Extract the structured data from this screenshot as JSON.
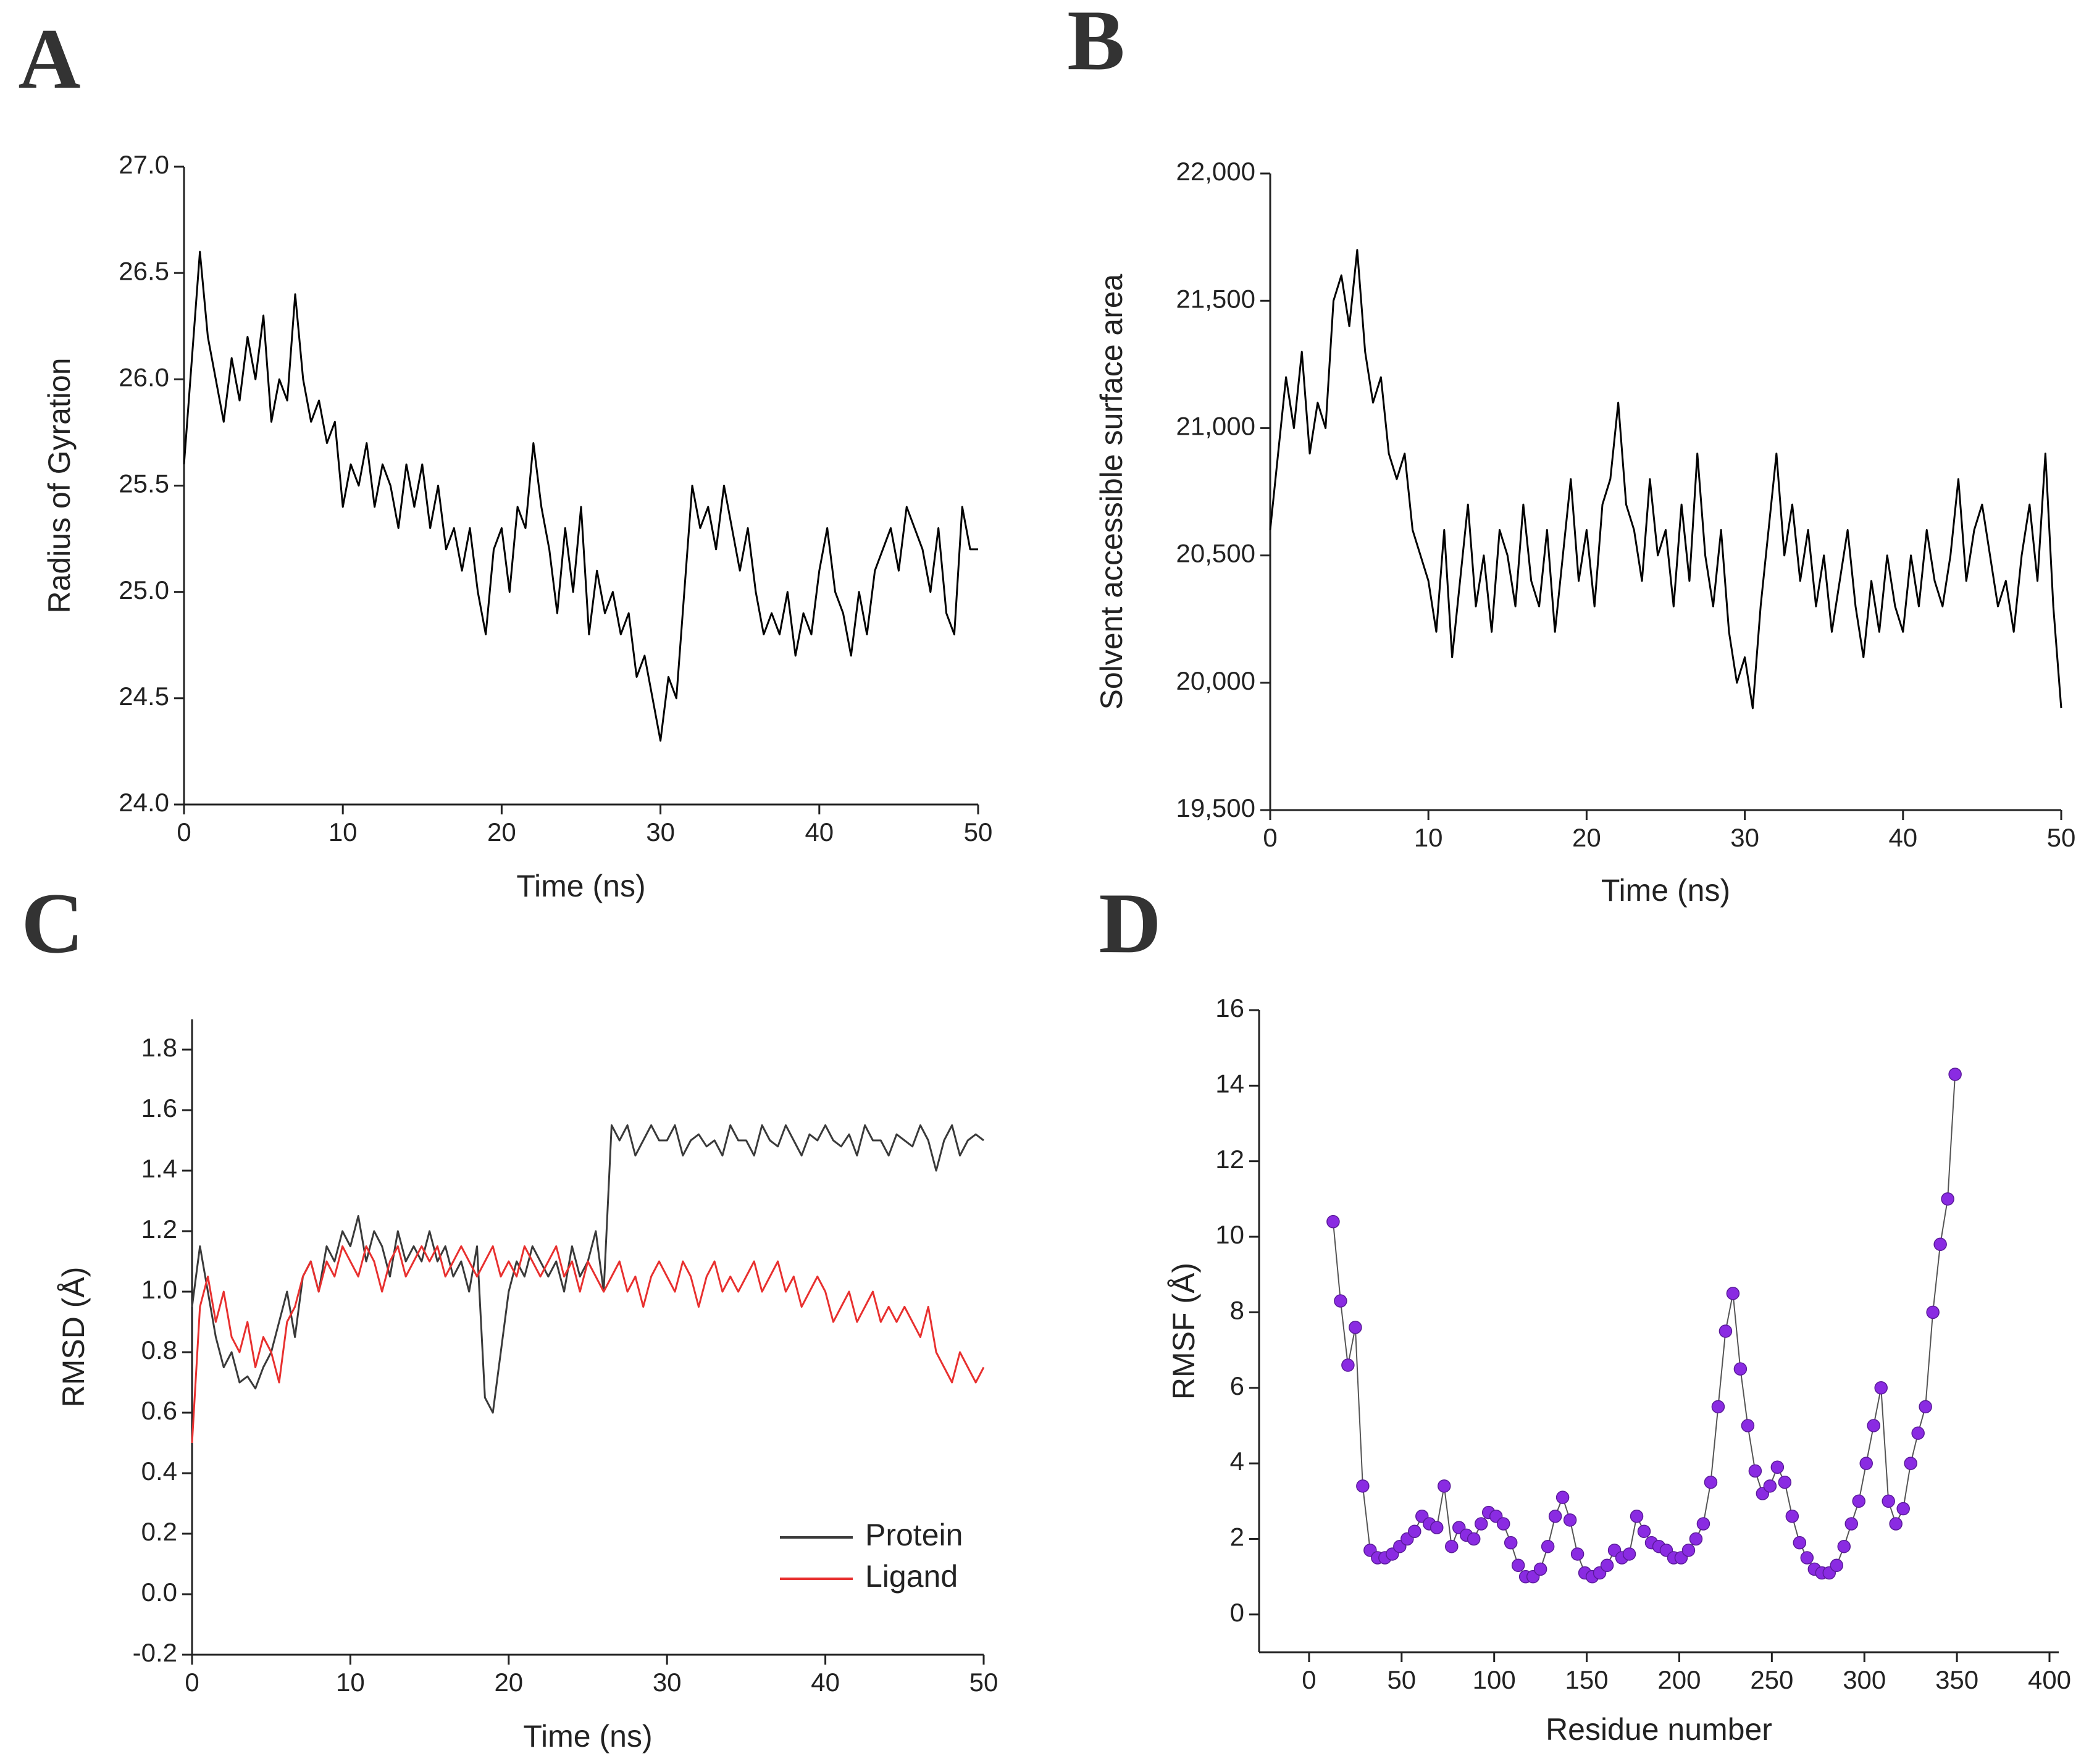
{
  "chart_data": [
    {
      "type": "line",
      "label": "A",
      "xlabel": "Time (ns)",
      "ylabel": "Radius of Gyration",
      "xlim": [
        0,
        50
      ],
      "xticks": [
        0,
        10,
        20,
        30,
        40,
        50
      ],
      "ylim": [
        24,
        27
      ],
      "yticks": [
        {
          "value": 24,
          "label": "24.0"
        },
        24.5,
        {
          "value": 25,
          "label": "25.0"
        },
        25.5,
        {
          "value": 26,
          "label": "26.0"
        },
        26.5,
        {
          "value": 27,
          "label": "27.0"
        }
      ],
      "x": [
        0,
        0.5,
        1,
        1.5,
        2,
        2.5,
        3,
        3.5,
        4,
        4.5,
        5,
        5.5,
        6,
        6.5,
        7,
        7.5,
        8,
        8.5,
        9,
        9.5,
        10,
        10.5,
        11,
        11.5,
        12,
        12.5,
        13,
        13.5,
        14,
        14.5,
        15,
        15.5,
        16,
        16.5,
        17,
        17.5,
        18,
        18.5,
        19,
        19.5,
        20,
        20.5,
        21,
        21.5,
        22,
        22.5,
        23,
        23.5,
        24,
        24.5,
        25,
        25.5,
        26,
        26.5,
        27,
        27.5,
        28,
        28.5,
        29,
        29.5,
        30,
        30.5,
        31,
        31.5,
        32,
        32.5,
        33,
        33.5,
        34,
        34.5,
        35,
        35.5,
        36,
        36.5,
        37,
        37.5,
        38,
        38.5,
        39,
        39.5,
        40,
        40.5,
        41,
        41.5,
        42,
        42.5,
        43,
        43.5,
        44,
        44.5,
        45,
        45.5,
        46,
        46.5,
        47,
        47.5,
        48,
        48.5,
        49,
        49.5,
        50
      ],
      "series": [
        {
          "color": "#000000",
          "values": [
            25.6,
            26.1,
            26.6,
            26.2,
            26.0,
            25.8,
            26.1,
            25.9,
            26.2,
            26.0,
            26.3,
            25.8,
            26.0,
            25.9,
            26.4,
            26.0,
            25.8,
            25.9,
            25.7,
            25.8,
            25.4,
            25.6,
            25.5,
            25.7,
            25.4,
            25.6,
            25.5,
            25.3,
            25.6,
            25.4,
            25.6,
            25.3,
            25.5,
            25.2,
            25.3,
            25.1,
            25.3,
            25.0,
            24.8,
            25.2,
            25.3,
            25.0,
            25.4,
            25.3,
            25.7,
            25.4,
            25.2,
            24.9,
            25.3,
            25.0,
            25.4,
            24.8,
            25.1,
            24.9,
            25.0,
            24.8,
            24.9,
            24.6,
            24.7,
            24.5,
            24.3,
            24.6,
            24.5,
            25.0,
            25.5,
            25.3,
            25.4,
            25.2,
            25.5,
            25.3,
            25.1,
            25.3,
            25.0,
            24.8,
            24.9,
            24.8,
            25.0,
            24.7,
            24.9,
            24.8,
            25.1,
            25.3,
            25.0,
            24.9,
            24.7,
            25.0,
            24.8,
            25.1,
            25.2,
            25.3,
            25.1,
            25.4,
            25.3,
            25.2,
            25.0,
            25.3,
            24.9,
            24.8,
            25.4,
            25.2,
            25.2
          ]
        }
      ]
    },
    {
      "type": "line",
      "label": "B",
      "xlabel": "Time (ns)",
      "ylabel": "Solvent accessible surface area",
      "xlim": [
        0,
        50
      ],
      "xticks": [
        0,
        10,
        20,
        30,
        40,
        50
      ],
      "ylim": [
        19500,
        22000
      ],
      "yticks": [
        {
          "value": 19500,
          "label": "19,500"
        },
        {
          "value": 20000,
          "label": "20,000"
        },
        {
          "value": 20500,
          "label": "20,500"
        },
        {
          "value": 21000,
          "label": "21,000"
        },
        {
          "value": 21500,
          "label": "21,500"
        },
        {
          "value": 22000,
          "label": "22,000"
        }
      ],
      "x": [
        0,
        0.5,
        1,
        1.5,
        2,
        2.5,
        3,
        3.5,
        4,
        4.5,
        5,
        5.5,
        6,
        6.5,
        7,
        7.5,
        8,
        8.5,
        9,
        9.5,
        10,
        10.5,
        11,
        11.5,
        12,
        12.5,
        13,
        13.5,
        14,
        14.5,
        15,
        15.5,
        16,
        16.5,
        17,
        17.5,
        18,
        18.5,
        19,
        19.5,
        20,
        20.5,
        21,
        21.5,
        22,
        22.5,
        23,
        23.5,
        24,
        24.5,
        25,
        25.5,
        26,
        26.5,
        27,
        27.5,
        28,
        28.5,
        29,
        29.5,
        30,
        30.5,
        31,
        31.5,
        32,
        32.5,
        33,
        33.5,
        34,
        34.5,
        35,
        35.5,
        36,
        36.5,
        37,
        37.5,
        38,
        38.5,
        39,
        39.5,
        40,
        40.5,
        41,
        41.5,
        42,
        42.5,
        43,
        43.5,
        44,
        44.5,
        45,
        45.5,
        46,
        46.5,
        47,
        47.5,
        48,
        48.5,
        49,
        49.5,
        50
      ],
      "series": [
        {
          "color": "#000000",
          "values": [
            20600,
            20900,
            21200,
            21000,
            21300,
            20900,
            21100,
            21000,
            21500,
            21600,
            21400,
            21700,
            21300,
            21100,
            21200,
            20900,
            20800,
            20900,
            20600,
            20500,
            20400,
            20200,
            20600,
            20100,
            20400,
            20700,
            20300,
            20500,
            20200,
            20600,
            20500,
            20300,
            20700,
            20400,
            20300,
            20600,
            20200,
            20500,
            20800,
            20400,
            20600,
            20300,
            20700,
            20800,
            21100,
            20700,
            20600,
            20400,
            20800,
            20500,
            20600,
            20300,
            20700,
            20400,
            20900,
            20500,
            20300,
            20600,
            20200,
            20000,
            20100,
            19900,
            20300,
            20600,
            20900,
            20500,
            20700,
            20400,
            20600,
            20300,
            20500,
            20200,
            20400,
            20600,
            20300,
            20100,
            20400,
            20200,
            20500,
            20300,
            20200,
            20500,
            20300,
            20600,
            20400,
            20300,
            20500,
            20800,
            20400,
            20600,
            20700,
            20500,
            20300,
            20400,
            20200,
            20500,
            20700,
            20400,
            20900,
            20300,
            19900
          ]
        }
      ]
    },
    {
      "type": "line",
      "label": "C",
      "xlabel": "Time (ns)",
      "ylabel": "RMSD (Å)",
      "legend": "lower right",
      "xlim": [
        0,
        50
      ],
      "xticks": [
        0,
        10,
        20,
        30,
        40,
        50
      ],
      "ylim": [
        -0.2,
        1.9
      ],
      "yticks": [
        -0.2,
        {
          "value": 0,
          "label": "0.0"
        },
        0.2,
        0.4,
        0.6,
        0.8,
        {
          "value": 1,
          "label": "1.0"
        },
        1.2,
        1.4,
        1.6,
        1.8
      ],
      "x": [
        0,
        0.5,
        1,
        1.5,
        2,
        2.5,
        3,
        3.5,
        4,
        4.5,
        5,
        5.5,
        6,
        6.5,
        7,
        7.5,
        8,
        8.5,
        9,
        9.5,
        10,
        10.5,
        11,
        11.5,
        12,
        12.5,
        13,
        13.5,
        14,
        14.5,
        15,
        15.5,
        16,
        16.5,
        17,
        17.5,
        18,
        18.5,
        19,
        19.5,
        20,
        20.5,
        21,
        21.5,
        22,
        22.5,
        23,
        23.5,
        24,
        24.5,
        25,
        25.5,
        26,
        26.5,
        27,
        27.5,
        28,
        28.5,
        29,
        29.5,
        30,
        30.5,
        31,
        31.5,
        32,
        32.5,
        33,
        33.5,
        34,
        34.5,
        35,
        35.5,
        36,
        36.5,
        37,
        37.5,
        38,
        38.5,
        39,
        39.5,
        40,
        40.5,
        41,
        41.5,
        42,
        42.5,
        43,
        43.5,
        44,
        44.5,
        45,
        45.5,
        46,
        46.5,
        47,
        47.5,
        48,
        48.5,
        49,
        49.5,
        50
      ],
      "series": [
        {
          "name": "Protein",
          "color": "#3a3a3a",
          "values": [
            0.95,
            1.15,
            1.0,
            0.85,
            0.75,
            0.8,
            0.7,
            0.72,
            0.68,
            0.75,
            0.8,
            0.9,
            1.0,
            0.85,
            1.05,
            1.1,
            1.0,
            1.15,
            1.1,
            1.2,
            1.15,
            1.25,
            1.1,
            1.2,
            1.15,
            1.05,
            1.2,
            1.1,
            1.15,
            1.1,
            1.2,
            1.1,
            1.15,
            1.05,
            1.1,
            1.0,
            1.15,
            0.65,
            0.6,
            0.8,
            1.0,
            1.1,
            1.05,
            1.15,
            1.1,
            1.05,
            1.1,
            1.0,
            1.15,
            1.05,
            1.1,
            1.2,
            1.0,
            1.55,
            1.5,
            1.55,
            1.45,
            1.5,
            1.55,
            1.5,
            1.5,
            1.55,
            1.45,
            1.5,
            1.52,
            1.48,
            1.5,
            1.45,
            1.55,
            1.5,
            1.5,
            1.45,
            1.55,
            1.5,
            1.48,
            1.55,
            1.5,
            1.45,
            1.52,
            1.5,
            1.55,
            1.5,
            1.48,
            1.52,
            1.45,
            1.55,
            1.5,
            1.5,
            1.45,
            1.52,
            1.5,
            1.48,
            1.55,
            1.5,
            1.4,
            1.5,
            1.55,
            1.45,
            1.5,
            1.52,
            1.5
          ]
        },
        {
          "name": "Ligand",
          "color": "#e8302f",
          "values": [
            0.5,
            0.95,
            1.05,
            0.9,
            1.0,
            0.85,
            0.8,
            0.9,
            0.75,
            0.85,
            0.8,
            0.7,
            0.9,
            0.95,
            1.05,
            1.1,
            1.0,
            1.1,
            1.05,
            1.15,
            1.1,
            1.05,
            1.15,
            1.1,
            1.0,
            1.1,
            1.15,
            1.05,
            1.1,
            1.15,
            1.1,
            1.15,
            1.05,
            1.1,
            1.15,
            1.1,
            1.05,
            1.1,
            1.15,
            1.05,
            1.1,
            1.05,
            1.15,
            1.1,
            1.05,
            1.1,
            1.15,
            1.05,
            1.1,
            1.0,
            1.1,
            1.05,
            1.0,
            1.05,
            1.1,
            1.0,
            1.05,
            0.95,
            1.05,
            1.1,
            1.05,
            1.0,
            1.1,
            1.05,
            0.95,
            1.05,
            1.1,
            1.0,
            1.05,
            1.0,
            1.05,
            1.1,
            1.0,
            1.05,
            1.1,
            1.0,
            1.05,
            0.95,
            1.0,
            1.05,
            1.0,
            0.9,
            0.95,
            1.0,
            0.9,
            0.95,
            1.0,
            0.9,
            0.95,
            0.9,
            0.95,
            0.9,
            0.85,
            0.95,
            0.8,
            0.75,
            0.7,
            0.8,
            0.75,
            0.7,
            0.75
          ]
        }
      ]
    },
    {
      "type": "line",
      "markers": true,
      "label": "D",
      "xlabel": "Residue number",
      "ylabel": "RMSF (Å)",
      "xlim": [
        -27,
        405
      ],
      "xticks": [
        0,
        50,
        100,
        150,
        200,
        250,
        300,
        350,
        400
      ],
      "ylim": [
        -1,
        16
      ],
      "yticks": [
        0,
        2,
        4,
        6,
        8,
        10,
        12,
        14,
        16
      ],
      "x": [
        13,
        17,
        21,
        25,
        29,
        33,
        37,
        41,
        45,
        49,
        53,
        57,
        61,
        65,
        69,
        73,
        77,
        81,
        85,
        89,
        93,
        97,
        101,
        105,
        109,
        113,
        117,
        121,
        125,
        129,
        133,
        137,
        141,
        145,
        149,
        153,
        157,
        161,
        165,
        169,
        173,
        177,
        181,
        185,
        189,
        193,
        197,
        201,
        205,
        209,
        213,
        217,
        221,
        225,
        229,
        233,
        237,
        241,
        245,
        249,
        253,
        257,
        261,
        265,
        269,
        273,
        277,
        281,
        285,
        289,
        293,
        297,
        301,
        305,
        309,
        313,
        317,
        321,
        325,
        329,
        333,
        337,
        341,
        345,
        349
      ],
      "series": [
        {
          "color": "#8a2be2",
          "line_color": "#555555",
          "values": [
            10.4,
            8.3,
            6.6,
            7.6,
            3.4,
            1.7,
            1.5,
            1.5,
            1.6,
            1.8,
            2.0,
            2.2,
            2.6,
            2.4,
            2.3,
            3.4,
            1.8,
            2.3,
            2.1,
            2.0,
            2.4,
            2.7,
            2.6,
            2.4,
            1.9,
            1.3,
            1.0,
            1.0,
            1.2,
            1.8,
            2.6,
            3.1,
            2.5,
            1.6,
            1.1,
            1.0,
            1.1,
            1.3,
            1.7,
            1.5,
            1.6,
            2.6,
            2.2,
            1.9,
            1.8,
            1.7,
            1.5,
            1.5,
            1.7,
            2.0,
            2.4,
            3.5,
            5.5,
            7.5,
            8.5,
            6.5,
            5.0,
            3.8,
            3.2,
            3.4,
            3.9,
            3.5,
            2.6,
            1.9,
            1.5,
            1.2,
            1.1,
            1.1,
            1.3,
            1.8,
            2.4,
            3.0,
            4.0,
            5.0,
            6.0,
            3.0,
            2.4,
            2.8,
            4.0,
            4.8,
            5.5,
            8.0,
            9.8,
            11.0,
            14.3
          ]
        }
      ]
    }
  ]
}
